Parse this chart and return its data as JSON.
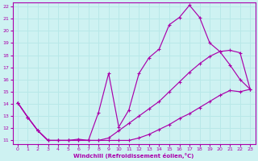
{
  "xlabel": "Windchill (Refroidissement éolien,°C)",
  "xlim": [
    0,
    23
  ],
  "ylim": [
    11,
    22
  ],
  "xticks": [
    0,
    1,
    2,
    3,
    4,
    5,
    6,
    7,
    8,
    9,
    10,
    11,
    12,
    13,
    14,
    15,
    16,
    17,
    18,
    19,
    20,
    21,
    22,
    23
  ],
  "yticks": [
    11,
    12,
    13,
    14,
    15,
    16,
    17,
    18,
    19,
    20,
    21,
    22
  ],
  "bg_color": "#cef2f2",
  "line_color": "#aa00aa",
  "grid_color": "#b8e8e8",
  "line1_x": [
    0,
    1,
    2,
    3,
    4,
    5,
    6,
    7,
    8,
    9,
    10,
    11,
    12,
    13,
    14,
    15,
    16,
    17,
    18,
    19,
    20,
    21,
    22,
    23
  ],
  "line1_y": [
    14.1,
    12.9,
    11.8,
    11.0,
    11.0,
    11.0,
    11.0,
    11.0,
    11.0,
    11.0,
    11.0,
    11.0,
    11.2,
    11.5,
    11.9,
    12.3,
    12.8,
    13.2,
    13.7,
    14.2,
    14.7,
    15.1,
    15.0,
    15.2
  ],
  "line2_x": [
    0,
    1,
    2,
    3,
    4,
    5,
    6,
    7,
    8,
    9,
    10,
    11,
    12,
    13,
    14,
    15,
    16,
    17,
    18,
    19,
    20,
    21,
    22,
    23
  ],
  "line2_y": [
    14.1,
    12.9,
    11.8,
    11.0,
    11.0,
    11.0,
    11.0,
    11.0,
    11.0,
    11.2,
    11.8,
    12.4,
    13.0,
    13.6,
    14.2,
    15.0,
    15.8,
    16.6,
    17.3,
    17.9,
    18.3,
    18.4,
    18.2,
    15.2
  ],
  "line3_x": [
    0,
    1,
    2,
    3,
    4,
    5,
    6,
    7,
    8,
    9,
    10,
    11,
    12,
    13,
    14,
    15,
    16,
    17,
    18,
    19,
    20,
    21,
    22,
    23
  ],
  "line3_y": [
    14.1,
    12.9,
    11.8,
    11.0,
    11.0,
    11.0,
    11.1,
    11.0,
    13.3,
    16.5,
    12.1,
    13.5,
    16.5,
    17.8,
    18.5,
    20.5,
    21.1,
    22.1,
    21.1,
    19.0,
    18.3,
    17.2,
    16.0,
    15.2
  ]
}
